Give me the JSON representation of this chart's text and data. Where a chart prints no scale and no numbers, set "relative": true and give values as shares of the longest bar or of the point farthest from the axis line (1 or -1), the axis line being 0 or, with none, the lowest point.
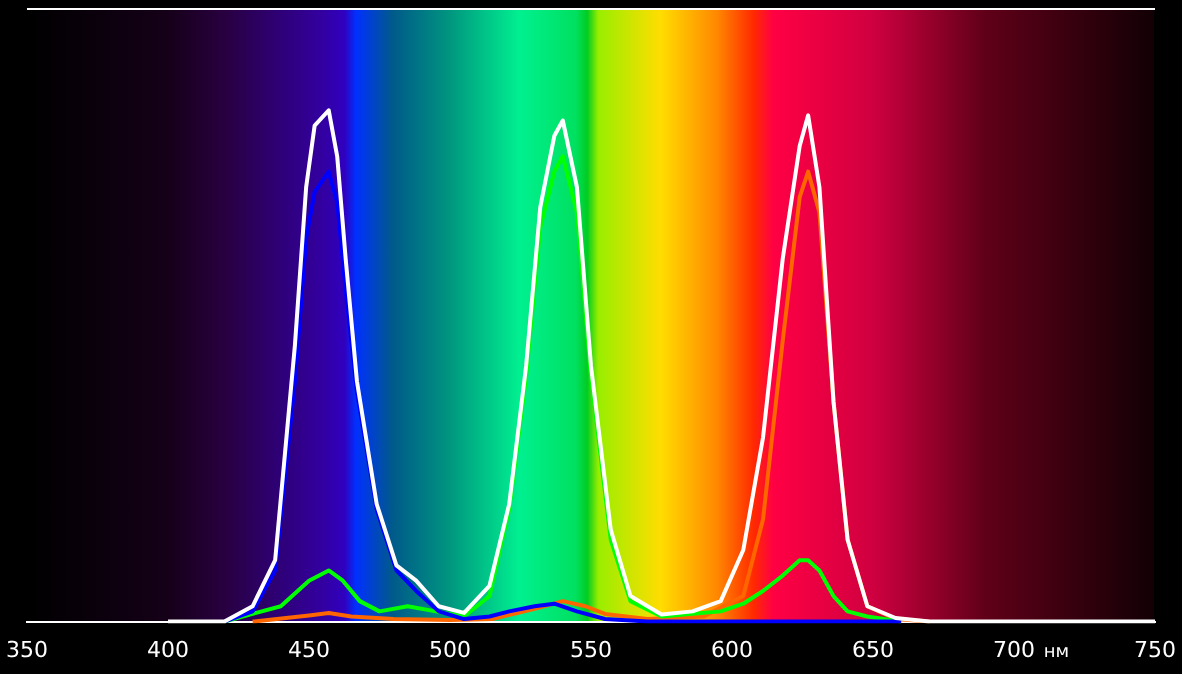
{
  "chart_data": {
    "type": "line",
    "xlabel": "нм",
    "relative": true,
    "xlim": [
      350,
      750
    ],
    "xticks": [
      350,
      400,
      450,
      500,
      550,
      600,
      650,
      700,
      750
    ],
    "legend": false,
    "grid": false,
    "marker": "none",
    "line_style": "solid",
    "series": [
      {
        "color": "#ffffff",
        "x": [
          400,
          420,
          430,
          438,
          445,
          449,
          452,
          457,
          460,
          463,
          467,
          474,
          481,
          488,
          496,
          505,
          514,
          521,
          527,
          532,
          537,
          540,
          545,
          550,
          557,
          564,
          575,
          586,
          596,
          604,
          611,
          618,
          624,
          627,
          631,
          636,
          641,
          648,
          658,
          670,
          690,
          750
        ],
        "values": [
          0,
          0,
          0.03,
          0.12,
          0.54,
          0.85,
          0.97,
          1,
          0.91,
          0.71,
          0.47,
          0.23,
          0.11,
          0.08,
          0.03,
          0.017,
          0.07,
          0.23,
          0.5,
          0.81,
          0.95,
          0.98,
          0.85,
          0.5,
          0.18,
          0.05,
          0.014,
          0.02,
          0.04,
          0.14,
          0.36,
          0.71,
          0.93,
          0.99,
          0.85,
          0.43,
          0.16,
          0.03,
          0.007,
          0,
          0,
          0
        ]
      },
      {
        "color": "#0000ff",
        "x": [
          420,
          430,
          438,
          445,
          449,
          452,
          457,
          460,
          463,
          467,
          474,
          481,
          488,
          496,
          505,
          514,
          521,
          530,
          537,
          545,
          555,
          570,
          620,
          660
        ],
        "values": [
          0,
          0.02,
          0.1,
          0.47,
          0.75,
          0.84,
          0.88,
          0.82,
          0.65,
          0.45,
          0.22,
          0.1,
          0.06,
          0.02,
          0.005,
          0.01,
          0.02,
          0.03,
          0.035,
          0.02,
          0.005,
          0,
          0,
          0
        ]
      },
      {
        "color": "#00ff00",
        "x": [
          420,
          440,
          450,
          457,
          462,
          468,
          475,
          485,
          495,
          505,
          514,
          521,
          527,
          532,
          537,
          540,
          545,
          550,
          557,
          564,
          575,
          596,
          604,
          611,
          618,
          624,
          627,
          631,
          636,
          641,
          648,
          660
        ],
        "values": [
          0,
          0.03,
          0.08,
          0.1,
          0.08,
          0.04,
          0.02,
          0.03,
          0.02,
          0.01,
          0.05,
          0.22,
          0.48,
          0.77,
          0.88,
          0.91,
          0.8,
          0.48,
          0.16,
          0.04,
          0.01,
          0.02,
          0.035,
          0.06,
          0.09,
          0.12,
          0.12,
          0.1,
          0.05,
          0.02,
          0.01,
          0
        ]
      },
      {
        "color": "#ff6600",
        "x": [
          430,
          450,
          457,
          465,
          480,
          500,
          515,
          530,
          540,
          548,
          555,
          570,
          590,
          604,
          611,
          618,
          624,
          627,
          631,
          636,
          641,
          648,
          658,
          670
        ],
        "values": [
          0,
          0.012,
          0.017,
          0.01,
          0.005,
          0.003,
          0.005,
          0.025,
          0.04,
          0.03,
          0.015,
          0.005,
          0.01,
          0.05,
          0.2,
          0.55,
          0.83,
          0.88,
          0.8,
          0.43,
          0.16,
          0.03,
          0.005,
          0
        ]
      }
    ]
  }
}
